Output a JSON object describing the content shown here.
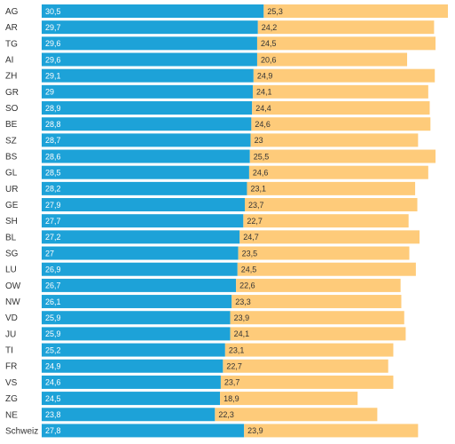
{
  "chart_data": {
    "type": "bar",
    "orientation": "horizontal",
    "stacked": true,
    "categories": [
      "AG",
      "AR",
      "TG",
      "AI",
      "ZH",
      "GR",
      "SO",
      "BE",
      "SZ",
      "BS",
      "GL",
      "UR",
      "GE",
      "SH",
      "BL",
      "SG",
      "LU",
      "OW",
      "NW",
      "VD",
      "JU",
      "TI",
      "FR",
      "VS",
      "ZG",
      "NE",
      "Schweiz"
    ],
    "series": [
      {
        "color": "#1da2d8",
        "values": [
          30.5,
          29.7,
          29.6,
          29.6,
          29.1,
          29,
          28.9,
          28.8,
          28.7,
          28.6,
          28.5,
          28.2,
          27.9,
          27.7,
          27.2,
          27,
          26.9,
          26.7,
          26.1,
          25.9,
          25.9,
          25.2,
          24.9,
          24.6,
          24.5,
          23.8,
          27.8
        ],
        "labels": [
          "30,5",
          "29,7",
          "29,6",
          "29,6",
          "29,1",
          "29",
          "28,9",
          "28,8",
          "28,7",
          "28,6",
          "28,5",
          "28,2",
          "27,9",
          "27,7",
          "27,2",
          "27",
          "26,9",
          "26,7",
          "26,1",
          "25,9",
          "25,9",
          "25,2",
          "24,9",
          "24,6",
          "24,5",
          "23,8",
          "27,8"
        ]
      },
      {
        "color": "#fecb7a",
        "values": [
          25.3,
          24.2,
          24.5,
          20.6,
          24.9,
          24.1,
          24.4,
          24.6,
          23,
          25.5,
          24.6,
          23.1,
          23.7,
          22.7,
          24.7,
          23.5,
          24.5,
          22.6,
          23.3,
          23.9,
          24.1,
          23.1,
          22.7,
          23.7,
          18.9,
          22.3,
          23.9
        ],
        "labels": [
          "25,3",
          "24,2",
          "24,5",
          "20,6",
          "24,9",
          "24,1",
          "24,4",
          "24,6",
          "23",
          "25,5",
          "24,6",
          "23,1",
          "23,7",
          "22,7",
          "24,7",
          "23,5",
          "24,5",
          "22,6",
          "23,3",
          "23,9",
          "24,1",
          "23,1",
          "22,7",
          "23,7",
          "18,9",
          "22,3",
          "23,9"
        ]
      }
    ],
    "xlim": [
      0,
      55.8
    ],
    "grid": false,
    "legend": "none"
  }
}
